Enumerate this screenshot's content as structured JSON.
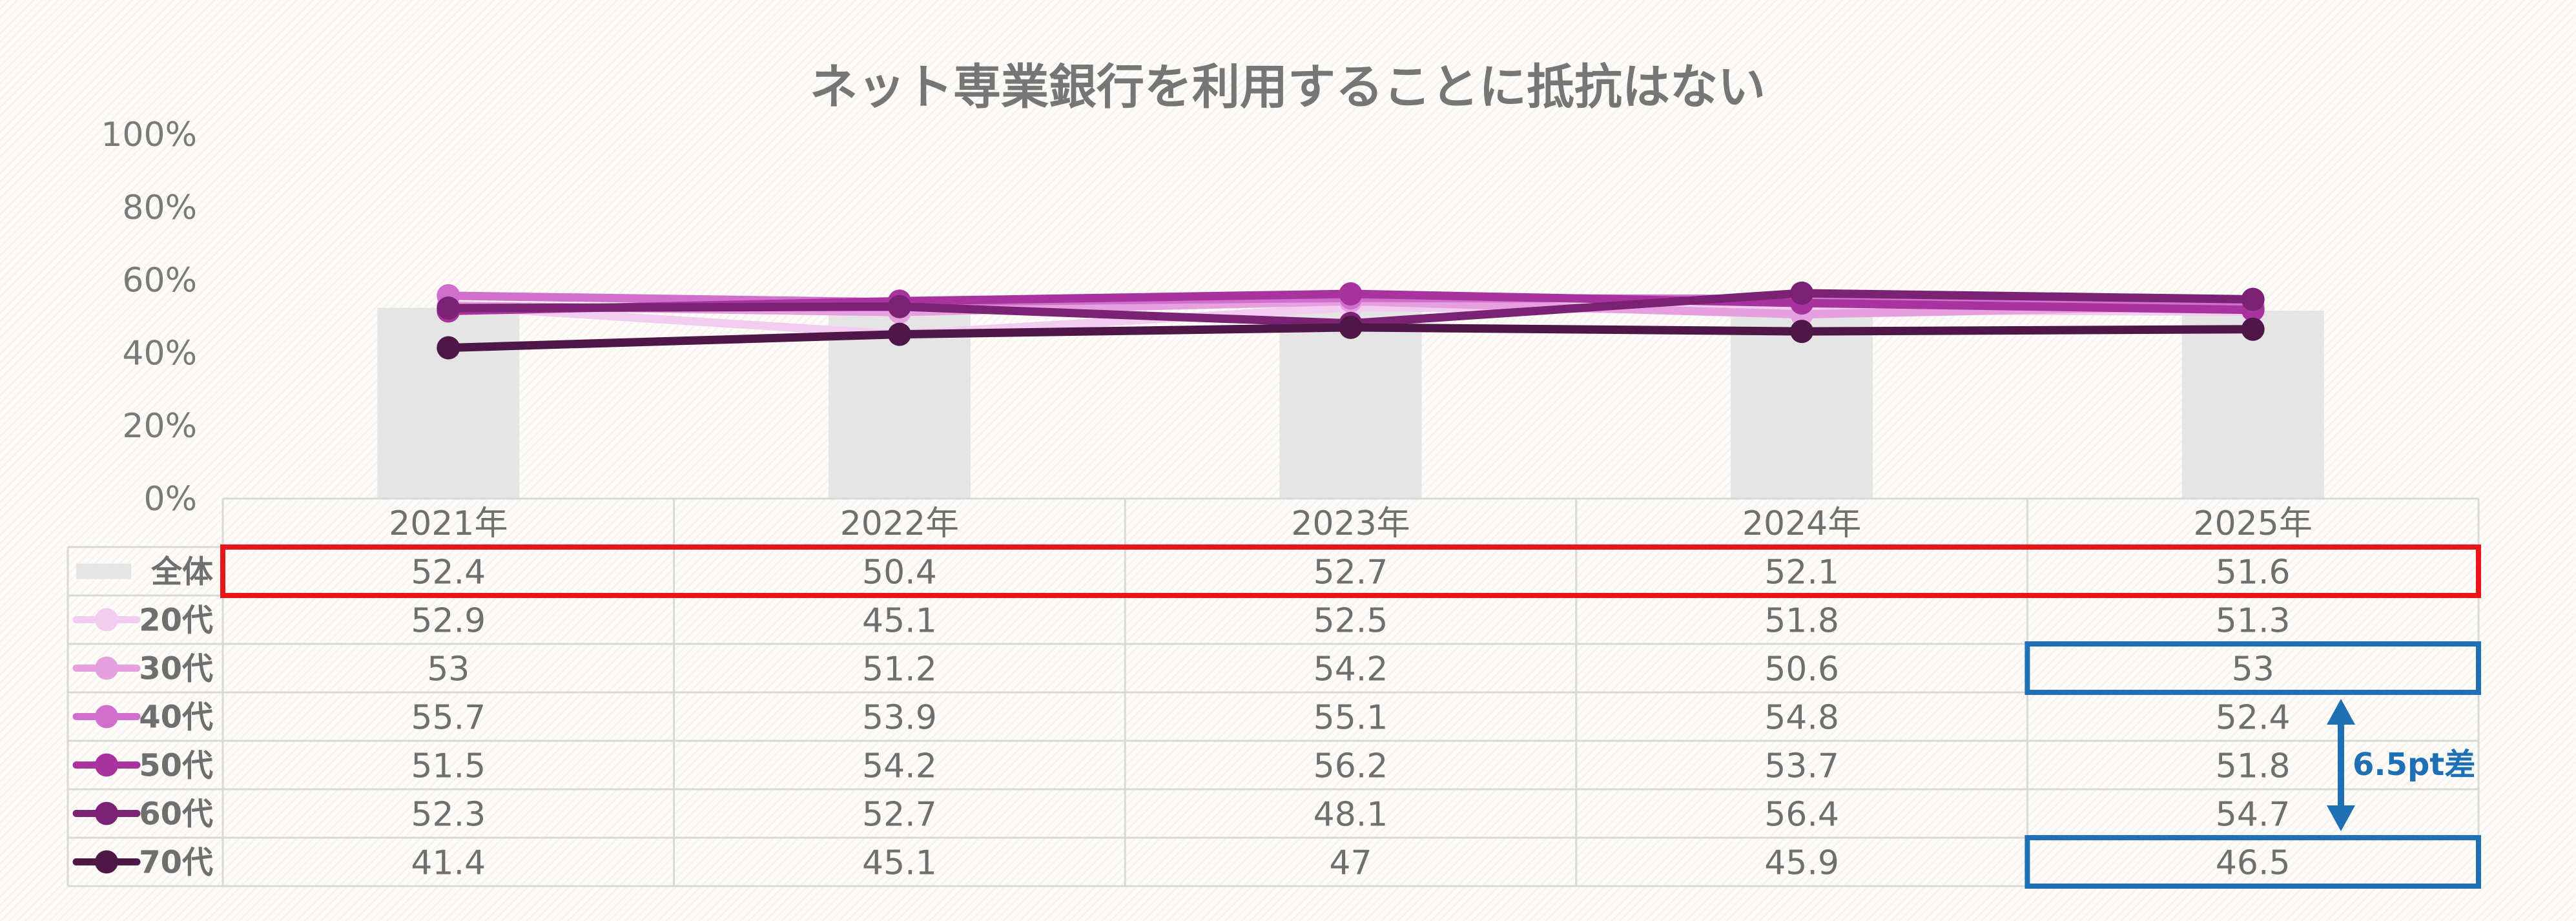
{
  "chart_data": {
    "type": "bar+line",
    "title": "ネット専業銀行を利用することに抵抗はない",
    "categories": [
      "2021年",
      "2022年",
      "2023年",
      "2024年",
      "2025年"
    ],
    "ylim": [
      0,
      100
    ],
    "yticks": [
      "0%",
      "20%",
      "40%",
      "60%",
      "80%",
      "100%"
    ],
    "bar_series": {
      "name": "全体",
      "color": "#e5e5e5",
      "values": [
        52.4,
        50.4,
        52.7,
        52.1,
        51.6
      ]
    },
    "series": [
      {
        "name": "20代",
        "color": "#f3cdf0",
        "values": [
          52.9,
          45.1,
          52.5,
          51.8,
          51.3
        ]
      },
      {
        "name": "30代",
        "color": "#e6a0df",
        "values": [
          53,
          51.2,
          54.2,
          50.6,
          53
        ]
      },
      {
        "name": "40代",
        "color": "#d070cc",
        "values": [
          55.7,
          53.9,
          55.1,
          54.8,
          52.4
        ]
      },
      {
        "name": "50代",
        "color": "#a8329e",
        "values": [
          51.5,
          54.2,
          56.2,
          53.7,
          51.8
        ]
      },
      {
        "name": "60代",
        "color": "#7a2374",
        "values": [
          52.3,
          52.7,
          48.1,
          56.4,
          54.7
        ]
      },
      {
        "name": "70代",
        "color": "#4f1748",
        "values": [
          41.4,
          45.1,
          47,
          45.9,
          46.5
        ]
      }
    ],
    "annotation": "6.5pt差",
    "highlight_color_red": "#e8151b",
    "highlight_color_blue": "#1f6fb5",
    "grid": false,
    "legend": "data-table"
  }
}
